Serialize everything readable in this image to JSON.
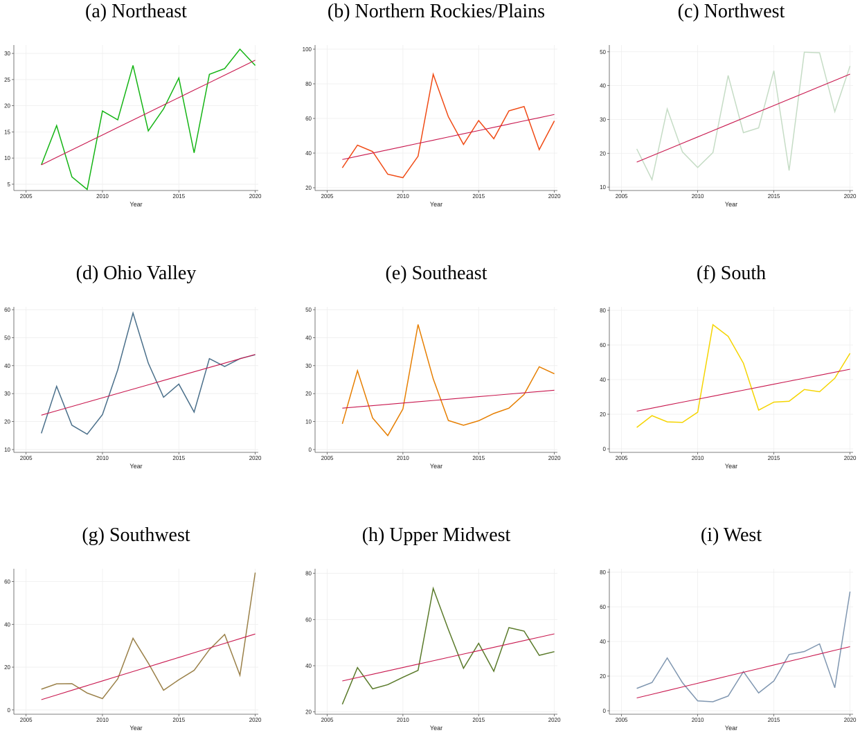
{
  "chart_data": [
    {
      "type": "line",
      "title": "(a) Northeast",
      "xlabel": "Year",
      "x": [
        2006,
        2007,
        2008,
        2009,
        2010,
        2011,
        2012,
        2013,
        2014,
        2015,
        2016,
        2017,
        2018,
        2019,
        2020
      ],
      "xlim": [
        2004.2,
        2020.2
      ],
      "xticks": [
        2005,
        2010,
        2015,
        2020
      ],
      "ylim": [
        3.8,
        31.6
      ],
      "yticks": [
        5,
        10,
        15,
        20,
        25,
        30
      ],
      "grid": true,
      "series": [
        {
          "color": "#14b414",
          "values": [
            8.7,
            16.2,
            6.4,
            4.0,
            19.0,
            17.3,
            27.7,
            15.2,
            19.4,
            25.3,
            11.0,
            26.0,
            27.1,
            30.8,
            27.7
          ]
        },
        {
          "color": "#c8164d",
          "values": [
            8.7,
            10.13,
            11.56,
            12.99,
            14.41,
            15.84,
            17.27,
            18.7,
            20.13,
            21.56,
            22.99,
            24.41,
            25.84,
            27.27,
            28.7
          ]
        }
      ]
    },
    {
      "type": "line",
      "title": "(b) Northern Rockies/Plains",
      "xlabel": "Year",
      "x": [
        2006,
        2007,
        2008,
        2009,
        2010,
        2011,
        2012,
        2013,
        2014,
        2015,
        2016,
        2017,
        2018,
        2019,
        2020
      ],
      "xlim": [
        2004.2,
        2020.2
      ],
      "xticks": [
        2005,
        2010,
        2015,
        2020
      ],
      "ylim": [
        18.4,
        102.4
      ],
      "yticks": [
        20,
        40,
        60,
        80,
        100
      ],
      "grid": true,
      "series": [
        {
          "color": "#f04a14",
          "values": [
            31.5,
            44.6,
            40.9,
            27.8,
            25.8,
            38.2,
            85.5,
            61,
            45,
            58.8,
            48.3,
            64.4,
            66.9,
            42,
            58.6
          ]
        },
        {
          "color": "#c8164d",
          "values": [
            36.3,
            38.16,
            40.01,
            41.87,
            43.73,
            45.59,
            47.44,
            49.3,
            51.16,
            53.01,
            54.87,
            56.73,
            58.59,
            60.44,
            62.3
          ]
        }
      ]
    },
    {
      "type": "line",
      "title": "(c) Northwest",
      "xlabel": "Year",
      "x": [
        2006,
        2007,
        2008,
        2009,
        2010,
        2011,
        2012,
        2013,
        2014,
        2015,
        2016,
        2017,
        2018,
        2019,
        2020
      ],
      "xlim": [
        2004.2,
        2020.2
      ],
      "xticks": [
        2005,
        2010,
        2015,
        2020
      ],
      "ylim": [
        9,
        52
      ],
      "yticks": [
        10,
        20,
        30,
        40,
        50
      ],
      "grid": true,
      "series": [
        {
          "color": "#c5dcc5",
          "values": [
            21.3,
            12.2,
            33.1,
            20.4,
            15.8,
            20.2,
            43,
            26.1,
            27.5,
            44.4,
            14.9,
            49.9,
            49.7,
            32.3,
            45.8
          ]
        },
        {
          "color": "#c8164d",
          "values": [
            17.4,
            19.26,
            21.11,
            22.97,
            24.83,
            26.69,
            28.54,
            30.4,
            32.26,
            34.11,
            35.97,
            37.83,
            39.69,
            41.54,
            43.4
          ]
        }
      ]
    },
    {
      "type": "line",
      "title": "(d) Ohio Valley",
      "xlabel": "Year",
      "x": [
        2006,
        2007,
        2008,
        2009,
        2010,
        2011,
        2012,
        2013,
        2014,
        2015,
        2016,
        2017,
        2018,
        2019,
        2020
      ],
      "xlim": [
        2004.2,
        2020.2
      ],
      "xticks": [
        2005,
        2010,
        2015,
        2020
      ],
      "ylim": [
        9,
        61
      ],
      "yticks": [
        10,
        20,
        30,
        40,
        50,
        60
      ],
      "grid": true,
      "series": [
        {
          "color": "#4a6f8a",
          "values": [
            15.8,
            32.6,
            18.7,
            15.5,
            22.5,
            38.5,
            58.8,
            40.9,
            28.7,
            33.4,
            23.4,
            42.5,
            39.7,
            42.5,
            43.9
          ]
        },
        {
          "color": "#c8164d",
          "values": [
            22.3,
            23.85,
            25.4,
            26.95,
            28.5,
            30.05,
            31.6,
            33.15,
            34.7,
            36.25,
            37.8,
            39.35,
            40.9,
            42.45,
            44
          ]
        }
      ]
    },
    {
      "type": "line",
      "title": "(e) Southeast",
      "xlabel": "Year",
      "x": [
        2006,
        2007,
        2008,
        2009,
        2010,
        2011,
        2012,
        2013,
        2014,
        2015,
        2016,
        2017,
        2018,
        2019,
        2020
      ],
      "xlim": [
        2004.2,
        2020.2
      ],
      "xticks": [
        2005,
        2010,
        2015,
        2020
      ],
      "ylim": [
        -1,
        51
      ],
      "yticks": [
        0,
        10,
        20,
        30,
        40,
        50
      ],
      "grid": true,
      "series": [
        {
          "color": "#e67e00",
          "values": [
            9.2,
            28.2,
            11.3,
            5,
            14.5,
            44.7,
            25.3,
            10.4,
            8.7,
            10.3,
            12.9,
            14.8,
            19.7,
            29.6,
            27.1
          ]
        },
        {
          "color": "#c8164d",
          "values": [
            14.8,
            15.26,
            15.71,
            16.17,
            16.63,
            17.09,
            17.54,
            18,
            18.46,
            18.91,
            19.37,
            19.83,
            20.29,
            20.74,
            21.2
          ]
        }
      ]
    },
    {
      "type": "line",
      "title": "(f) South",
      "xlabel": "Year",
      "x": [
        2006,
        2007,
        2008,
        2009,
        2010,
        2011,
        2012,
        2013,
        2014,
        2015,
        2016,
        2017,
        2018,
        2019,
        2020
      ],
      "xlim": [
        2004.2,
        2020.2
      ],
      "xticks": [
        2005,
        2010,
        2015,
        2020
      ],
      "ylim": [
        -2,
        82
      ],
      "yticks": [
        0,
        20,
        40,
        60,
        80
      ],
      "grid": true,
      "series": [
        {
          "color": "#f5d400",
          "values": [
            12.4,
            19.2,
            15.6,
            15.3,
            21.2,
            71.7,
            65,
            49.5,
            22.4,
            27,
            27.5,
            34.3,
            33,
            40.8,
            55.2
          ]
        },
        {
          "color": "#c8164d",
          "values": [
            21.8,
            23.53,
            25.26,
            26.99,
            28.71,
            30.44,
            32.17,
            33.9,
            35.63,
            37.36,
            39.09,
            40.81,
            42.54,
            44.27,
            46
          ]
        }
      ]
    },
    {
      "type": "line",
      "title": "(g) Southwest",
      "xlabel": "Year",
      "x": [
        2006,
        2007,
        2008,
        2009,
        2010,
        2011,
        2012,
        2013,
        2014,
        2015,
        2016,
        2017,
        2018,
        2019,
        2020
      ],
      "xlim": [
        2004.2,
        2020.2
      ],
      "xticks": [
        2005,
        2010,
        2015,
        2020
      ],
      "ylim": [
        -2,
        66
      ],
      "yticks": [
        0,
        20,
        40,
        60
      ],
      "grid": true,
      "series": [
        {
          "color": "#9a8048",
          "values": [
            9.7,
            12.2,
            12.3,
            7.9,
            5.3,
            14.5,
            33.5,
            21.9,
            9.2,
            14.1,
            18.5,
            28.2,
            35.3,
            16.2,
            64.2
          ]
        },
        {
          "color": "#c8164d",
          "values": [
            4.8,
            6.99,
            9.19,
            11.38,
            13.57,
            15.76,
            17.96,
            20.15,
            22.34,
            24.54,
            26.73,
            28.92,
            31.11,
            33.31,
            35.5
          ]
        }
      ]
    },
    {
      "type": "line",
      "title": "(h) Upper Midwest",
      "xlabel": "Year",
      "x": [
        2006,
        2007,
        2008,
        2009,
        2010,
        2011,
        2012,
        2013,
        2014,
        2015,
        2016,
        2017,
        2018,
        2019,
        2020
      ],
      "xlim": [
        2004.2,
        2020.2
      ],
      "xticks": [
        2005,
        2010,
        2015,
        2020
      ],
      "ylim": [
        19,
        82
      ],
      "yticks": [
        20,
        40,
        60,
        80
      ],
      "grid": true,
      "series": [
        {
          "color": "#5a7a2a",
          "values": [
            23.3,
            39.2,
            30,
            31.8,
            35,
            38,
            73.5,
            55.7,
            38.9,
            49.7,
            37.6,
            56.5,
            55,
            44.5,
            46.1
          ]
        },
        {
          "color": "#c8164d",
          "values": [
            33.4,
            34.86,
            36.31,
            37.77,
            39.23,
            40.69,
            42.14,
            43.6,
            45.06,
            46.51,
            47.97,
            49.43,
            50.89,
            52.34,
            53.8
          ]
        }
      ]
    },
    {
      "type": "line",
      "title": "(i) West",
      "xlabel": "Year",
      "x": [
        2006,
        2007,
        2008,
        2009,
        2010,
        2011,
        2012,
        2013,
        2014,
        2015,
        2016,
        2017,
        2018,
        2019,
        2020
      ],
      "xlim": [
        2004.2,
        2020.2
      ],
      "xticks": [
        2005,
        2010,
        2015,
        2020
      ],
      "ylim": [
        -2,
        82
      ],
      "yticks": [
        0,
        20,
        40,
        60,
        80
      ],
      "grid": true,
      "series": [
        {
          "color": "#7f96b0",
          "values": [
            12.9,
            16.3,
            30.5,
            16.2,
            5.7,
            5.2,
            8.5,
            22.6,
            10.3,
            17.2,
            32.5,
            34.2,
            38.6,
            13.3,
            68.8
          ]
        },
        {
          "color": "#c8164d",
          "values": [
            7.4,
            9.51,
            11.63,
            13.74,
            15.86,
            17.97,
            20.09,
            22.2,
            24.31,
            26.43,
            28.54,
            30.66,
            32.77,
            34.89,
            37
          ]
        }
      ]
    }
  ]
}
